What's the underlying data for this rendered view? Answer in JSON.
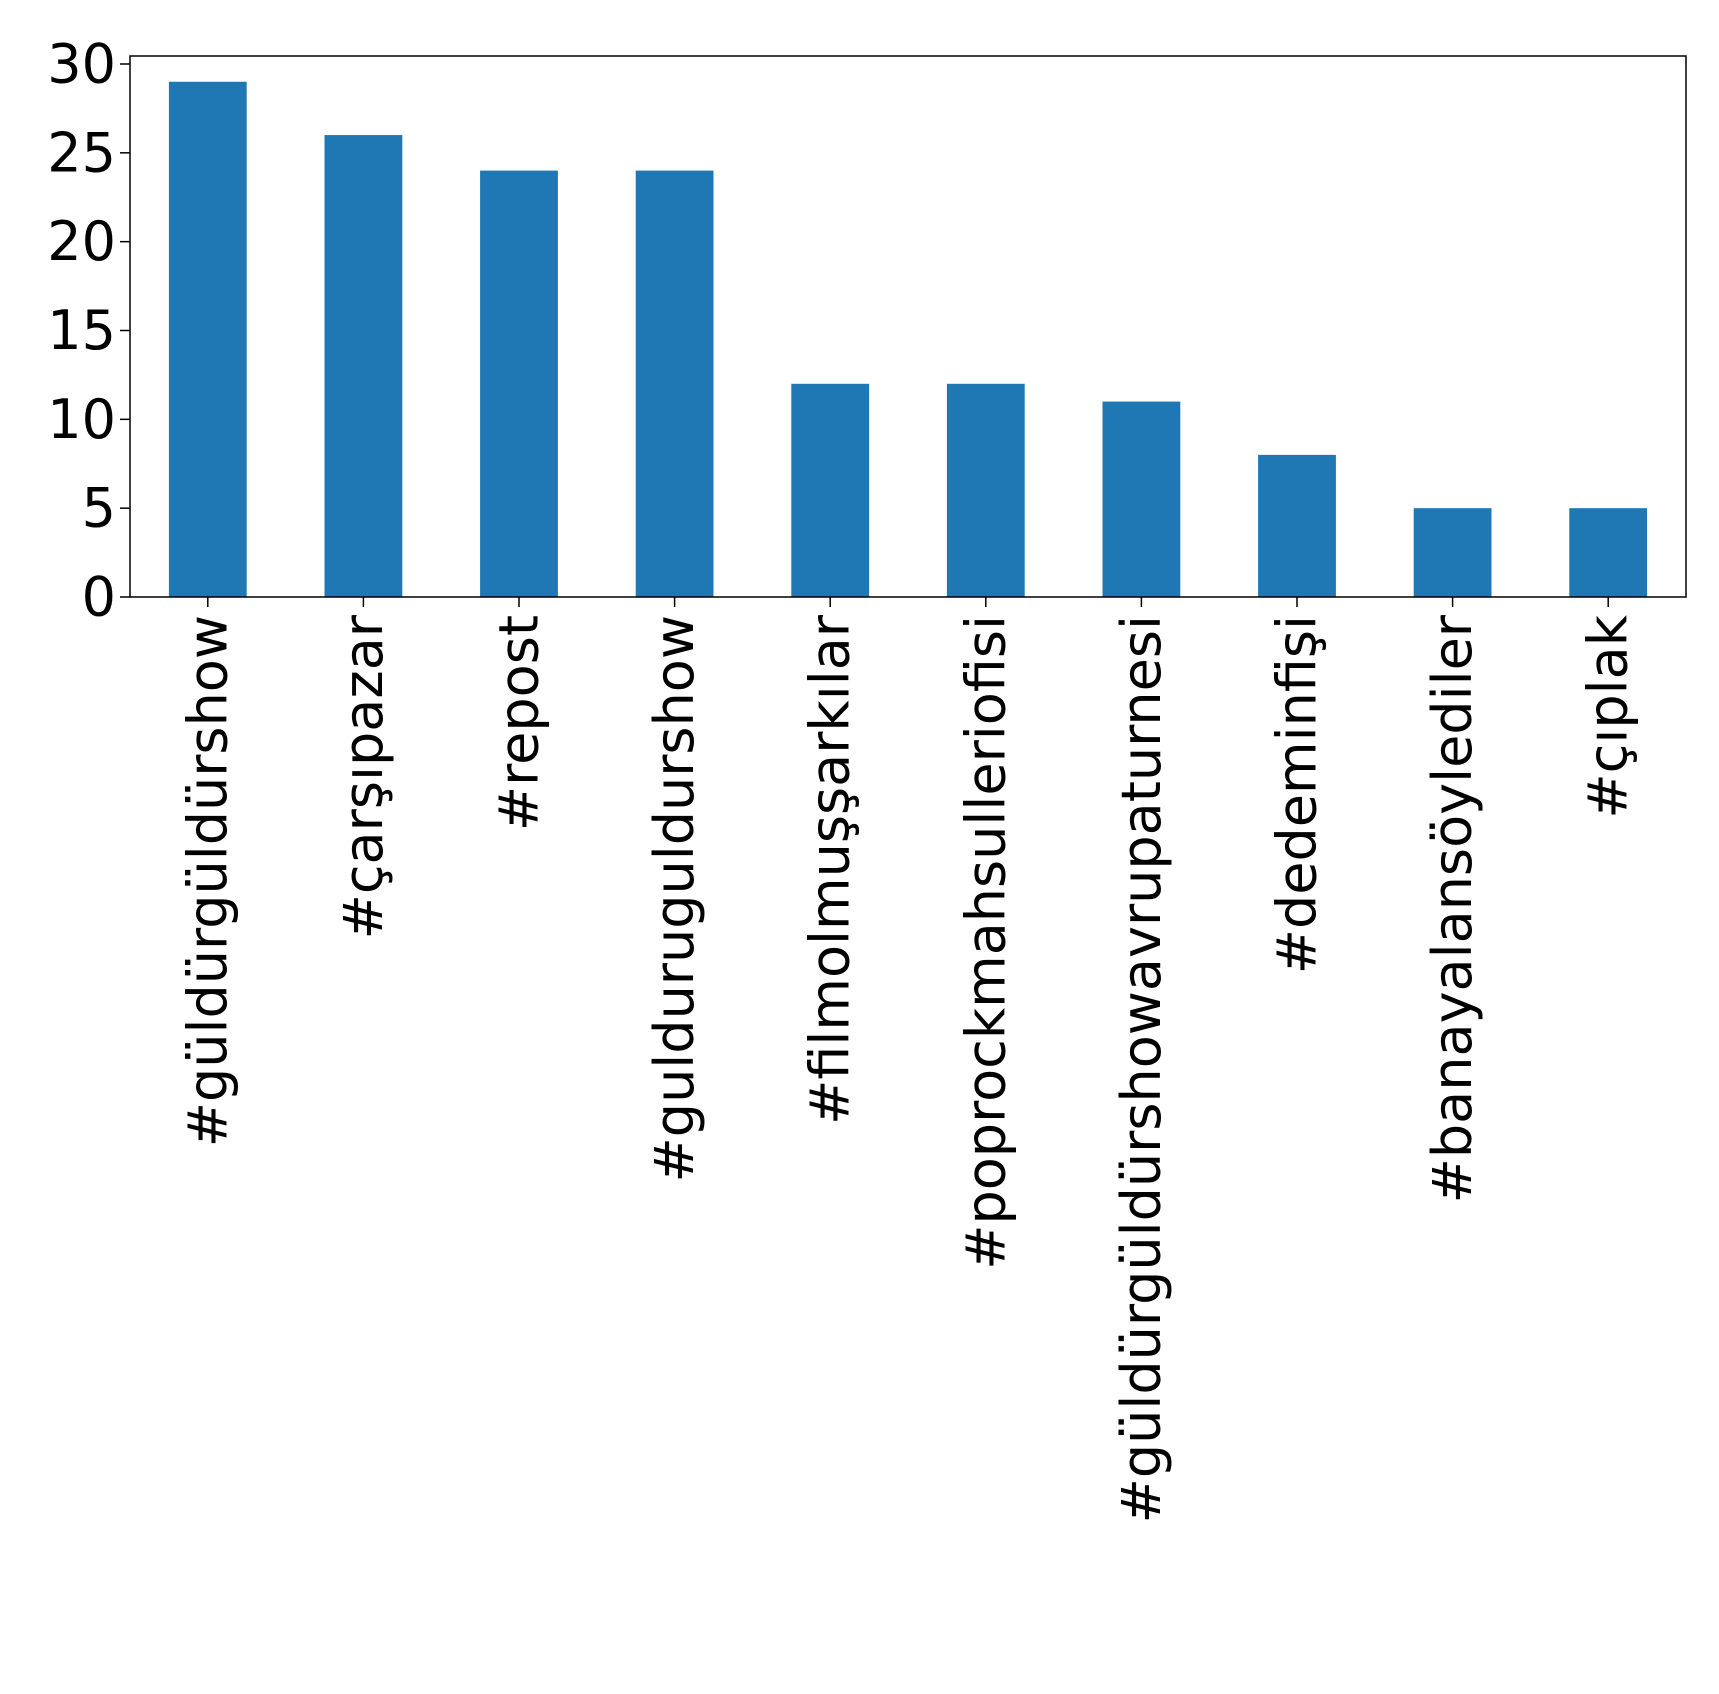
{
  "chart_data": {
    "type": "bar",
    "title": "",
    "xlabel": "",
    "ylabel": "",
    "categories": [
      "#güldürgüldürshow",
      "#çarşıpazar",
      "#repost",
      "#gulduruguldurshow",
      "#filmolmuşşarkılar",
      "#poprockmahsulleriofisi",
      "#güldürgüldürshowavrupaturnesi",
      "#dedeminfişi",
      "#banayalansöylediler",
      "#çıplak"
    ],
    "values": [
      29,
      26,
      24,
      24,
      12,
      12,
      11,
      8,
      5,
      5
    ],
    "ylim": [
      0,
      30.45
    ],
    "yticks": [
      0,
      5,
      10,
      15,
      20,
      25,
      30
    ],
    "grid": false,
    "legend": "none",
    "bar_color": "#1f77b4"
  }
}
